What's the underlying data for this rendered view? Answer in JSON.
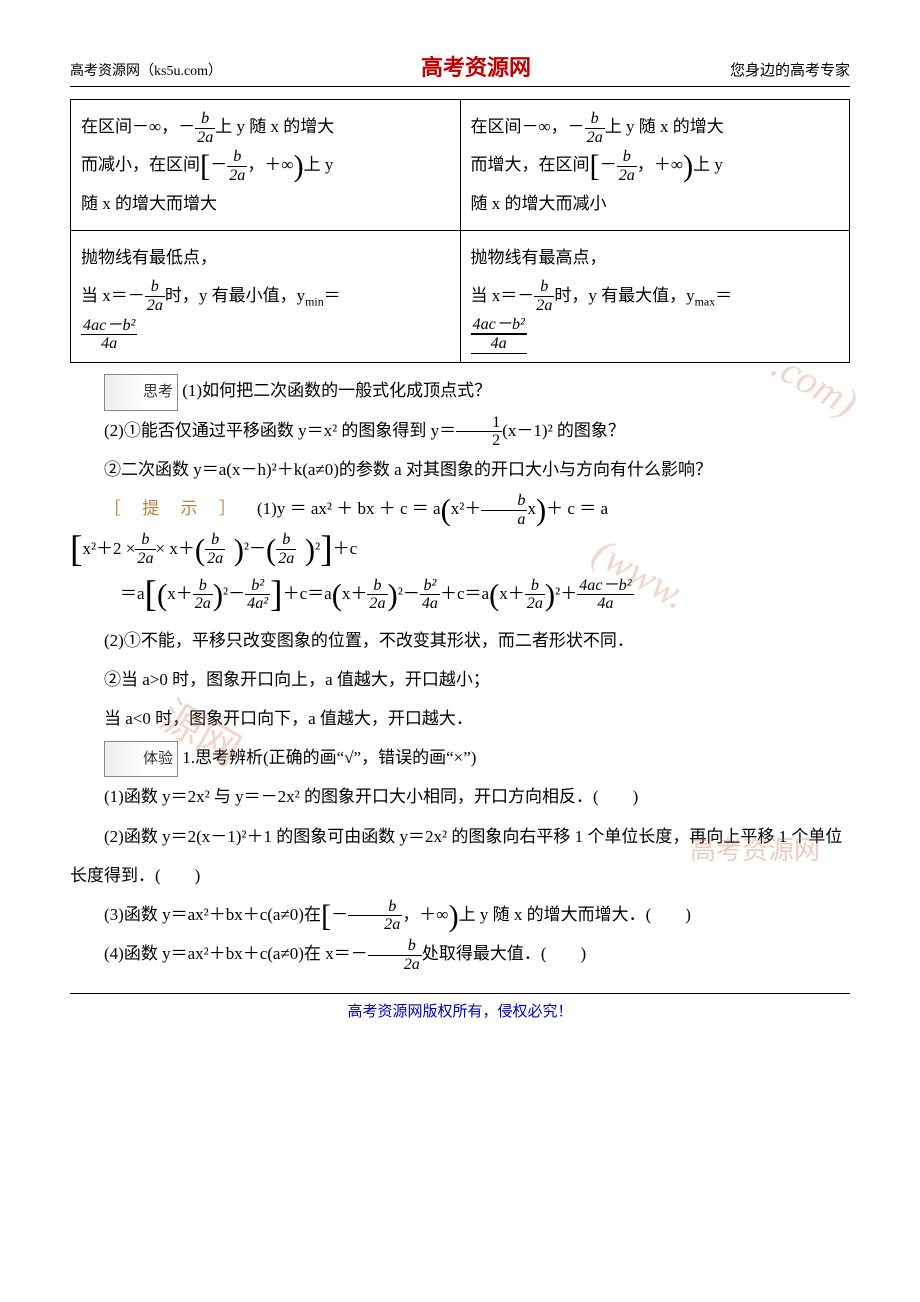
{
  "header": {
    "left": "高考资源网（ks5u.com）",
    "center": "高考资源网",
    "right": "您身边的高考专家"
  },
  "table": {
    "r1c1_a": "在区间－∞，－",
    "r1c1_frac_num": "b",
    "r1c1_frac_den": "2a",
    "r1c1_b": "上 y 随 x 的增大",
    "r1c1_c": "而减小，在区间",
    "r1c1_d": "，＋∞",
    "r1c1_e": "上 y",
    "r1c1_f": "随 x 的增大而增大",
    "r1c2_a": "在区间－∞，－",
    "r1c2_b": "上 y 随 x 的增大",
    "r1c2_c": "而增大，在区间",
    "r1c2_d": "，＋∞",
    "r1c2_e": "上 y",
    "r1c2_f": "随 x 的增大而减小",
    "r2c1_a": "抛物线有最低点，",
    "r2c1_b": "当 x＝－",
    "r2c1_c": "时，y 有最小值，y",
    "r2c1_min": "min",
    "r2c1_d": "＝",
    "r2c1_frac2_num": "4ac－b²",
    "r2c1_frac2_den": "4a",
    "r2c2_a": "抛物线有最高点，",
    "r2c2_b": "当 x＝－",
    "r2c2_c": "时，y 有最大值，y",
    "r2c2_max": "max",
    "r2c2_d": "＝"
  },
  "sikao_label": "思考",
  "sikao_q1": "(1)如何把二次函数的一般式化成顶点式？",
  "q2_a": "(2)①能否仅通过平移函数 y＝x² 的图象得到 y＝",
  "q2_frac_num": "1",
  "q2_frac_den": "2",
  "q2_b": "(x－1)² 的图象？",
  "q2_2": "②二次函数 y＝a(x－h)²＋k(a≠0)的参数 a 对其图象的开口大小与方向有什么影响？",
  "tishi_label": "［ 提 示 ］",
  "tishi1_a": "(1)y ＝ ax² ＋ bx ＋ c ＝ a",
  "tishi1_b": "x²＋",
  "tishi1_frac_num": "b",
  "tishi1_frac_den": "a",
  "tishi1_c": "x",
  "tishi1_d": "＋ c ＝ a",
  "eq2_a": "x²＋2 ×",
  "eq2_f1n": "b",
  "eq2_f1d": "2a",
  "eq2_b": "× x＋",
  "eq2_c": "²－",
  "eq2_d": "²",
  "eq2_e": "＋c",
  "eq3_a": "＝a",
  "eq3_b": "x＋",
  "eq3_c": "²－",
  "eq3_f3n": "b²",
  "eq3_f3d": "4a²",
  "eq3_d": "＋c＝a",
  "eq3_e": "x＋",
  "eq3_f": "²－",
  "eq3_f5n": "b²",
  "eq3_f5d": "4a",
  "eq3_g": "＋c＝a",
  "eq3_h": "x＋",
  "eq3_i": "²＋",
  "eq3_f7n": "4ac－b²",
  "eq3_f7d": "4a",
  "ans2_1": "(2)①不能，平移只改变图象的位置，不改变其形状，而二者形状不同．",
  "ans2_2a": "②当 a>0 时，图象开口向上，a 值越大，开口越小；",
  "ans2_2b": "当 a<0 时，图象开口向下，a 值越大，开口越大．",
  "tiyan_label": "体验",
  "tiyan_intro": "1.思考辨析(正确的画“√”，错误的画“×”)",
  "t1": "(1)函数 y＝2x² 与 y＝－2x² 的图象开口大小相同，开口方向相反．(　　)",
  "t2": "(2)函数 y＝2(x－1)²＋1 的图象可由函数 y＝2x² 的图象向右平移 1 个单位长度，再向上平移 1 个单位长度得到．(　　)",
  "t3_a": "(3)函数 y＝ax²＋bx＋c(a≠0)在",
  "t3_b": "，＋∞",
  "t3_c": "上 y 随 x 的增大而增大．(　　)",
  "t4_a": "(4)函数 y＝ax²＋bx＋c(a≠0)在 x＝－",
  "t4_b": "处取得最大值．(　　)",
  "footer": "高考资源网版权所有，侵权必究！",
  "watermarks": {
    "w1": ".com)",
    "w2": "(www.",
    "w3": "源网",
    "w4": "高考资源网"
  }
}
